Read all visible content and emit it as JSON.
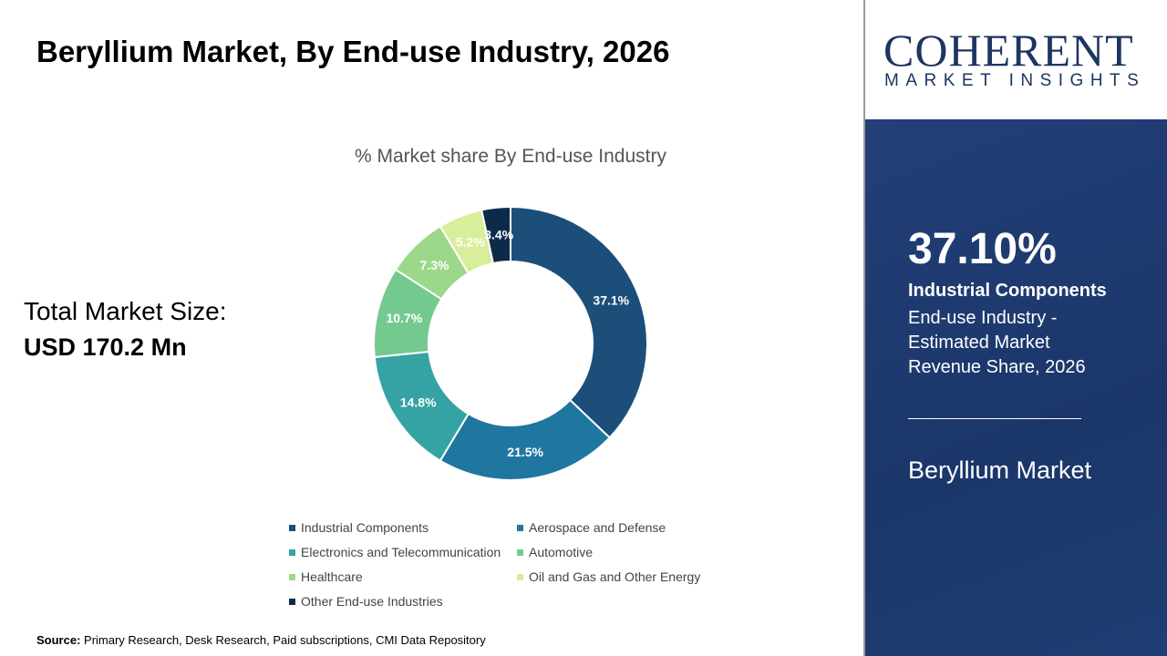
{
  "title": "Beryllium Market,  By End-use Industry, 2026",
  "market": {
    "label": "Total Market Size:",
    "value": "USD 170.2 Mn"
  },
  "source": {
    "label": "Source:",
    "text": " Primary Research, Desk Research, Paid subscriptions, CMI Data Repository"
  },
  "logo": {
    "line1": "COHERENT",
    "line2": "MARKET INSIGHTS"
  },
  "panel": {
    "pct": "37.10%",
    "segment": "Industrial Components",
    "desc": "End-use Industry - Estimated Market Revenue Share, 2026",
    "market": "Beryllium Market"
  },
  "chart_data": {
    "type": "pie",
    "donut": true,
    "title": "% Market share  By End-use Industry",
    "categories": [
      "Industrial Components",
      "Aerospace and Defense",
      "Electronics and Telecommunication",
      "Automotive",
      "Healthcare",
      "Oil and Gas and Other Energy",
      "Other End-use Industries"
    ],
    "values": [
      37.1,
      21.5,
      14.8,
      10.7,
      7.3,
      5.2,
      3.4
    ],
    "labels": [
      "37.1%",
      "21.5%",
      "14.8%",
      "10.7%",
      "7.3%",
      "5.2%",
      "3.4%"
    ],
    "colors": [
      "#1b4f7a",
      "#1f77a0",
      "#35a3a3",
      "#74c98f",
      "#9cd88a",
      "#d9ee9a",
      "#0d2b49"
    ],
    "legend": "bottom"
  }
}
